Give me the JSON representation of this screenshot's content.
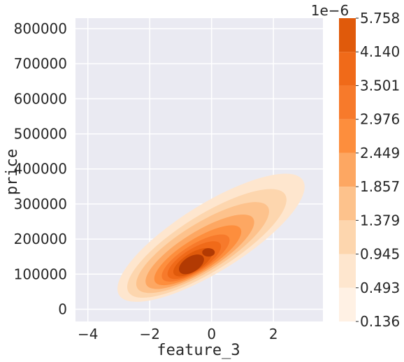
{
  "chart_data": {
    "type": "kde",
    "xlabel": "feature_3",
    "ylabel": "price",
    "xlim": [
      -4.4,
      3.6
    ],
    "ylim": [
      -35000,
      830000
    ],
    "x_ticks": [
      -4,
      -2,
      0,
      2
    ],
    "x_tick_labels": [
      "−4",
      "−2",
      "0",
      "2"
    ],
    "y_ticks": [
      0,
      100000,
      200000,
      300000,
      400000,
      500000,
      600000,
      700000,
      800000
    ],
    "y_tick_labels": [
      "0",
      "100000",
      "200000",
      "300000",
      "400000",
      "500000",
      "600000",
      "700000",
      "800000"
    ],
    "grid": true,
    "background": "#eaeaf2",
    "density": {
      "peak": {
        "x": -0.65,
        "y": 128000
      },
      "secondary_peak": {
        "x": -0.1,
        "y": 162000
      },
      "ridge_direction": "from (-2.5, 60000) to (2.3, 380000)"
    },
    "colorbar": {
      "multiplier_label": "1e−6",
      "levels": [
        0.136,
        0.493,
        0.945,
        1.379,
        1.857,
        2.449,
        2.976,
        3.501,
        4.14,
        5.758
      ],
      "level_labels": [
        "0.136",
        "0.493",
        "0.945",
        "1.379",
        "1.857",
        "2.449",
        "2.976",
        "3.501",
        "4.140",
        "5.758"
      ],
      "colors": [
        "#fff1e4",
        "#fee6ce",
        "#fdd6ae",
        "#fdc28c",
        "#fda762",
        "#fd8e3d",
        "#f77a2b",
        "#f06a19",
        "#e05a0b",
        "#b23a03"
      ]
    }
  }
}
